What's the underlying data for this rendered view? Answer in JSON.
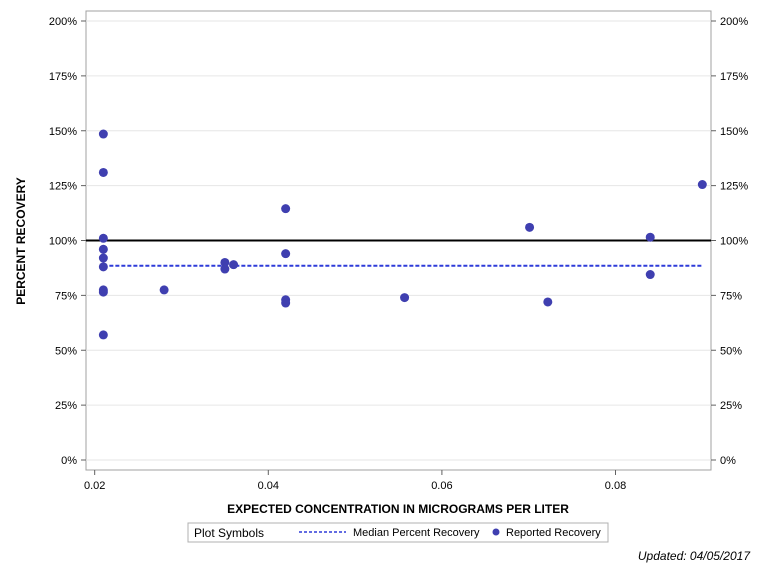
{
  "chart_data": {
    "type": "scatter",
    "xlabel": "EXPECTED CONCENTRATION IN MICROGRAMS PER LITER",
    "ylabel": "PERCENT RECOVERY",
    "xlim": [
      0.019,
      0.091
    ],
    "ylim": [
      0,
      2.0
    ],
    "x_ticks": [
      0.02,
      0.04,
      0.06,
      0.08
    ],
    "x_tick_labels": [
      "0.02",
      "0.04",
      "0.06",
      "0.08"
    ],
    "y_ticks": [
      0,
      0.25,
      0.5,
      0.75,
      1.0,
      1.25,
      1.5,
      1.75,
      2.0
    ],
    "y_tick_labels": [
      "0%",
      "25%",
      "50%",
      "75%",
      "100%",
      "125%",
      "150%",
      "175%",
      "200%"
    ],
    "grid": true,
    "reference_line": {
      "y": 1.0,
      "color": "#000000"
    },
    "median_line": {
      "name": "Median Percent Recovery",
      "y": 0.885,
      "x_range": [
        0.021,
        0.09
      ],
      "color": "#2e3bd9"
    },
    "series": [
      {
        "name": "Reported Recovery",
        "color": "#3f3fb0",
        "points": [
          {
            "x": 0.021,
            "y": 1.485
          },
          {
            "x": 0.021,
            "y": 1.31
          },
          {
            "x": 0.021,
            "y": 1.01
          },
          {
            "x": 0.021,
            "y": 0.96
          },
          {
            "x": 0.021,
            "y": 0.92
          },
          {
            "x": 0.021,
            "y": 0.88
          },
          {
            "x": 0.021,
            "y": 0.775
          },
          {
            "x": 0.021,
            "y": 0.765
          },
          {
            "x": 0.021,
            "y": 0.57
          },
          {
            "x": 0.028,
            "y": 0.775
          },
          {
            "x": 0.035,
            "y": 0.9
          },
          {
            "x": 0.035,
            "y": 0.87
          },
          {
            "x": 0.036,
            "y": 0.89
          },
          {
            "x": 0.042,
            "y": 1.145
          },
          {
            "x": 0.042,
            "y": 0.94
          },
          {
            "x": 0.042,
            "y": 0.73
          },
          {
            "x": 0.042,
            "y": 0.715
          },
          {
            "x": 0.0557,
            "y": 0.74
          },
          {
            "x": 0.0701,
            "y": 1.06
          },
          {
            "x": 0.0722,
            "y": 0.72
          },
          {
            "x": 0.084,
            "y": 1.015
          },
          {
            "x": 0.084,
            "y": 0.845
          },
          {
            "x": 0.09,
            "y": 1.255
          }
        ]
      }
    ],
    "legend": {
      "title": "Plot Symbols",
      "placement": "bottom",
      "entries": [
        "Median Percent Recovery",
        "Reported Recovery"
      ]
    }
  },
  "footer": {
    "updated": "Updated: 04/05/2017"
  }
}
